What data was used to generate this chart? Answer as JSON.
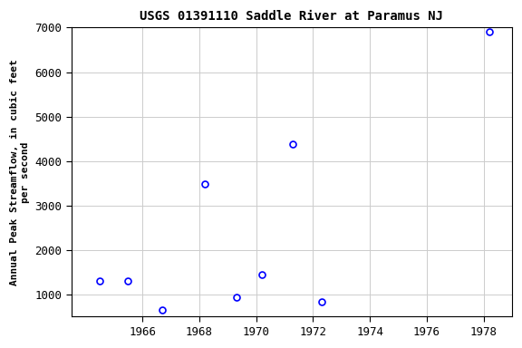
{
  "title": "USGS 01391110 Saddle River at Paramus NJ",
  "ylabel": "Annual Peak Streamflow, in cubic feet\nper second",
  "years": [
    1964.5,
    1965.5,
    1966.7,
    1968.2,
    1969.3,
    1970.2,
    1971.3,
    1972.3,
    1978.2
  ],
  "values": [
    1300,
    1300,
    650,
    3480,
    930,
    1450,
    4380,
    830,
    6900
  ],
  "marker": "o",
  "marker_color": "blue",
  "marker_facecolor": "none",
  "marker_size": 5,
  "marker_linewidth": 1.2,
  "xlim": [
    1963.5,
    1979.0
  ],
  "ylim": [
    500,
    7000
  ],
  "xticks": [
    1966,
    1968,
    1970,
    1972,
    1974,
    1976,
    1978
  ],
  "yticks": [
    1000,
    2000,
    3000,
    4000,
    5000,
    6000,
    7000
  ],
  "grid_color": "#cccccc",
  "grid_linewidth": 0.7,
  "bg_color": "#ffffff",
  "fig_bg_color": "#ffffff",
  "title_fontsize": 10,
  "axis_fontsize": 8,
  "tick_fontsize": 9,
  "font_family": "monospace"
}
